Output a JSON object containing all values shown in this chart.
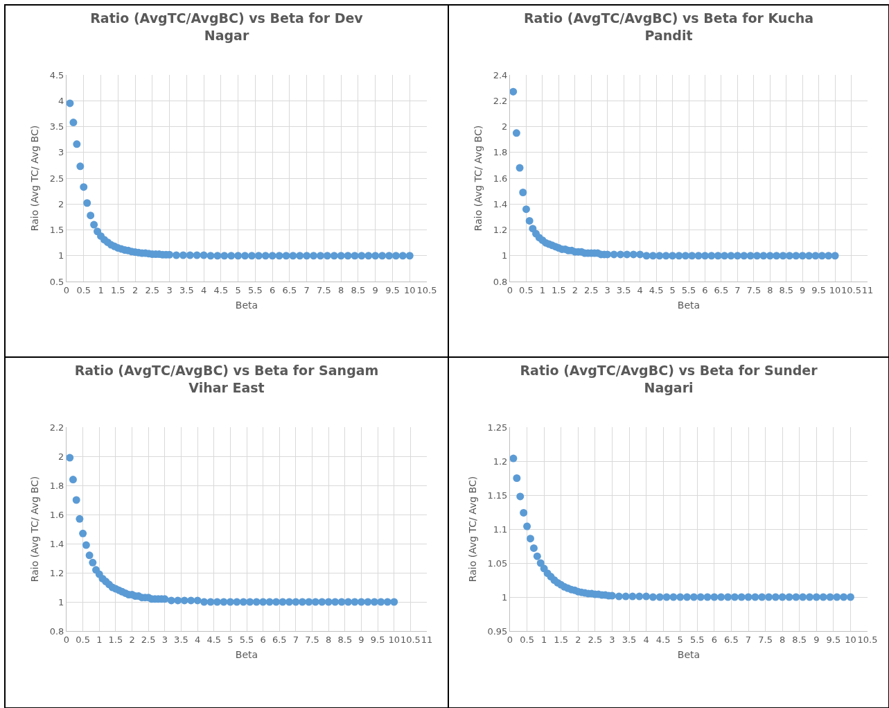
{
  "chart_data": [
    {
      "type": "scatter",
      "title": "Ratio (AvgTC/AvgBC) vs Beta for Dev Nagar",
      "xlabel": "Beta",
      "ylabel": "Raio (Avg TC/ Avg BC)",
      "marker": "circle",
      "grid": true,
      "color": "#5b9bd5",
      "x": [
        0.1,
        0.2,
        0.3,
        0.4,
        0.5,
        0.6,
        0.7,
        0.8,
        0.9,
        1.0,
        1.1,
        1.2,
        1.3,
        1.4,
        1.5,
        1.6,
        1.7,
        1.8,
        1.9,
        2.0,
        2.1,
        2.2,
        2.3,
        2.4,
        2.5,
        2.6,
        2.7,
        2.8,
        2.9,
        3.0,
        3.2,
        3.4,
        3.6,
        3.8,
        4.0,
        4.2,
        4.4,
        4.6,
        4.8,
        5.0,
        5.2,
        5.4,
        5.6,
        5.8,
        6.0,
        6.2,
        6.4,
        6.6,
        6.8,
        7.0,
        7.2,
        7.4,
        7.6,
        7.8,
        8.0,
        8.2,
        8.4,
        8.6,
        8.8,
        9.0,
        9.2,
        9.4,
        9.6,
        9.8,
        10.0
      ],
      "values": [
        3.95,
        3.58,
        3.16,
        2.73,
        2.33,
        2.02,
        1.78,
        1.6,
        1.47,
        1.38,
        1.31,
        1.26,
        1.21,
        1.18,
        1.15,
        1.13,
        1.11,
        1.1,
        1.08,
        1.07,
        1.06,
        1.05,
        1.05,
        1.04,
        1.03,
        1.03,
        1.03,
        1.02,
        1.02,
        1.02,
        1.01,
        1.01,
        1.01,
        1.01,
        1.01,
        1,
        1,
        1,
        1,
        1,
        1,
        1,
        1,
        1,
        1,
        1,
        1,
        1,
        1,
        1,
        1,
        1,
        1,
        1,
        1,
        1,
        1,
        1,
        1,
        1,
        1,
        1,
        1,
        1,
        1
      ],
      "xlim": [
        0,
        10.5
      ],
      "xticks": [
        0,
        0.5,
        1,
        1.5,
        2,
        2.5,
        3,
        3.5,
        4,
        4.5,
        5,
        5.5,
        6,
        6.5,
        7,
        7.5,
        8,
        8.5,
        9,
        9.5,
        10,
        10.5
      ],
      "ylim": [
        0.5,
        4.5
      ],
      "yticks": [
        0.5,
        1,
        1.5,
        2,
        2.5,
        3,
        3.5,
        4,
        4.5
      ]
    },
    {
      "type": "scatter",
      "title": "Ratio (AvgTC/AvgBC) vs Beta for Kucha Pandit",
      "xlabel": "Beta",
      "ylabel": "Raio (Avg TC/ Avg BC)",
      "marker": "circle",
      "grid": true,
      "color": "#5b9bd5",
      "x": [
        0.1,
        0.2,
        0.3,
        0.4,
        0.5,
        0.6,
        0.7,
        0.8,
        0.9,
        1.0,
        1.1,
        1.2,
        1.3,
        1.4,
        1.5,
        1.6,
        1.7,
        1.8,
        1.9,
        2.0,
        2.1,
        2.2,
        2.3,
        2.4,
        2.5,
        2.6,
        2.7,
        2.8,
        2.9,
        3.0,
        3.2,
        3.4,
        3.6,
        3.8,
        4.0,
        4.2,
        4.4,
        4.6,
        4.8,
        5.0,
        5.2,
        5.4,
        5.6,
        5.8,
        6.0,
        6.2,
        6.4,
        6.6,
        6.8,
        7.0,
        7.2,
        7.4,
        7.6,
        7.8,
        8.0,
        8.2,
        8.4,
        8.6,
        8.8,
        9.0,
        9.2,
        9.4,
        9.6,
        9.8,
        10.0
      ],
      "values": [
        2.27,
        1.95,
        1.68,
        1.49,
        1.36,
        1.27,
        1.21,
        1.17,
        1.14,
        1.12,
        1.1,
        1.09,
        1.08,
        1.07,
        1.06,
        1.05,
        1.05,
        1.04,
        1.04,
        1.03,
        1.03,
        1.03,
        1.02,
        1.02,
        1.02,
        1.02,
        1.02,
        1.01,
        1.01,
        1.01,
        1.01,
        1.01,
        1.01,
        1.01,
        1.01,
        1,
        1,
        1,
        1,
        1,
        1,
        1,
        1,
        1,
        1,
        1,
        1,
        1,
        1,
        1,
        1,
        1,
        1,
        1,
        1,
        1,
        1,
        1,
        1,
        1,
        1,
        1,
        1,
        1,
        1
      ],
      "xlim": [
        0,
        11
      ],
      "xticks": [
        0,
        0.5,
        1,
        1.5,
        2,
        2.5,
        3,
        3.5,
        4,
        4.5,
        5,
        5.5,
        6,
        6.5,
        7,
        7.5,
        8,
        8.5,
        9,
        9.5,
        10,
        10.5,
        11
      ],
      "ylim": [
        0.8,
        2.4
      ],
      "yticks": [
        0.8,
        1,
        1.2,
        1.4,
        1.6,
        1.8,
        2,
        2.2,
        2.4
      ]
    },
    {
      "type": "scatter",
      "title": "Ratio (AvgTC/AvgBC) vs Beta for Sangam Vihar East",
      "xlabel": "Beta",
      "ylabel": "Raio (Avg TC/ Avg BC)",
      "marker": "circle",
      "grid": true,
      "color": "#5b9bd5",
      "x": [
        0.1,
        0.2,
        0.3,
        0.4,
        0.5,
        0.6,
        0.7,
        0.8,
        0.9,
        1.0,
        1.1,
        1.2,
        1.3,
        1.4,
        1.5,
        1.6,
        1.7,
        1.8,
        1.9,
        2.0,
        2.1,
        2.2,
        2.3,
        2.4,
        2.5,
        2.6,
        2.7,
        2.8,
        2.9,
        3.0,
        3.2,
        3.4,
        3.6,
        3.8,
        4.0,
        4.2,
        4.4,
        4.6,
        4.8,
        5.0,
        5.2,
        5.4,
        5.6,
        5.8,
        6.0,
        6.2,
        6.4,
        6.6,
        6.8,
        7.0,
        7.2,
        7.4,
        7.6,
        7.8,
        8.0,
        8.2,
        8.4,
        8.6,
        8.8,
        9.0,
        9.2,
        9.4,
        9.6,
        9.8,
        10.0
      ],
      "values": [
        1.99,
        1.84,
        1.7,
        1.57,
        1.47,
        1.39,
        1.32,
        1.27,
        1.22,
        1.19,
        1.16,
        1.14,
        1.12,
        1.1,
        1.09,
        1.08,
        1.07,
        1.06,
        1.05,
        1.05,
        1.04,
        1.04,
        1.03,
        1.03,
        1.03,
        1.02,
        1.02,
        1.02,
        1.02,
        1.02,
        1.01,
        1.01,
        1.01,
        1.01,
        1.01,
        1,
        1,
        1,
        1,
        1,
        1,
        1,
        1,
        1,
        1,
        1,
        1,
        1,
        1,
        1,
        1,
        1,
        1,
        1,
        1,
        1,
        1,
        1,
        1,
        1,
        1,
        1,
        1,
        1,
        1
      ],
      "xlim": [
        0,
        11
      ],
      "xticks": [
        0,
        0.5,
        1,
        1.5,
        2,
        2.5,
        3,
        3.5,
        4,
        4.5,
        5,
        5.5,
        6,
        6.5,
        7,
        7.5,
        8,
        8.5,
        9,
        9.5,
        10,
        10.5,
        11
      ],
      "ylim": [
        0.8,
        2.2
      ],
      "yticks": [
        0.8,
        1,
        1.2,
        1.4,
        1.6,
        1.8,
        2,
        2.2
      ]
    },
    {
      "type": "scatter",
      "title": "Ratio (AvgTC/AvgBC) vs Beta for Sunder Nagari",
      "xlabel": "Beta",
      "ylabel": "Raio (Avg TC/ Avg BC)",
      "marker": "circle",
      "grid": true,
      "color": "#5b9bd5",
      "x": [
        0.1,
        0.2,
        0.3,
        0.4,
        0.5,
        0.6,
        0.7,
        0.8,
        0.9,
        1.0,
        1.1,
        1.2,
        1.3,
        1.4,
        1.5,
        1.6,
        1.7,
        1.8,
        1.9,
        2.0,
        2.1,
        2.2,
        2.3,
        2.4,
        2.5,
        2.6,
        2.7,
        2.8,
        2.9,
        3.0,
        3.2,
        3.4,
        3.6,
        3.8,
        4.0,
        4.2,
        4.4,
        4.6,
        4.8,
        5.0,
        5.2,
        5.4,
        5.6,
        5.8,
        6.0,
        6.2,
        6.4,
        6.6,
        6.8,
        7.0,
        7.2,
        7.4,
        7.6,
        7.8,
        8.0,
        8.2,
        8.4,
        8.6,
        8.8,
        9.0,
        9.2,
        9.4,
        9.6,
        9.8,
        10.0
      ],
      "values": [
        1.204,
        1.175,
        1.148,
        1.124,
        1.104,
        1.086,
        1.072,
        1.06,
        1.05,
        1.042,
        1.035,
        1.03,
        1.025,
        1.021,
        1.018,
        1.015,
        1.013,
        1.011,
        1.01,
        1.008,
        1.007,
        1.006,
        1.005,
        1.005,
        1.004,
        1.004,
        1.003,
        1.003,
        1.002,
        1.002,
        1.001,
        1.001,
        1.001,
        1.001,
        1.001,
        1,
        1,
        1,
        1,
        1,
        1,
        1,
        1,
        1,
        1,
        1,
        1,
        1,
        1,
        1,
        1,
        1,
        1,
        1,
        1,
        1,
        1,
        1,
        1,
        1,
        1,
        1,
        1,
        1,
        1
      ],
      "xlim": [
        0,
        10.5
      ],
      "xticks": [
        0,
        0.5,
        1,
        1.5,
        2,
        2.5,
        3,
        3.5,
        4,
        4.5,
        5,
        5.5,
        6,
        6.5,
        7,
        7.5,
        8,
        8.5,
        9,
        9.5,
        10,
        10.5
      ],
      "ylim": [
        0.95,
        1.25
      ],
      "yticks": [
        0.95,
        1,
        1.05,
        1.1,
        1.15,
        1.2,
        1.25
      ]
    }
  ]
}
